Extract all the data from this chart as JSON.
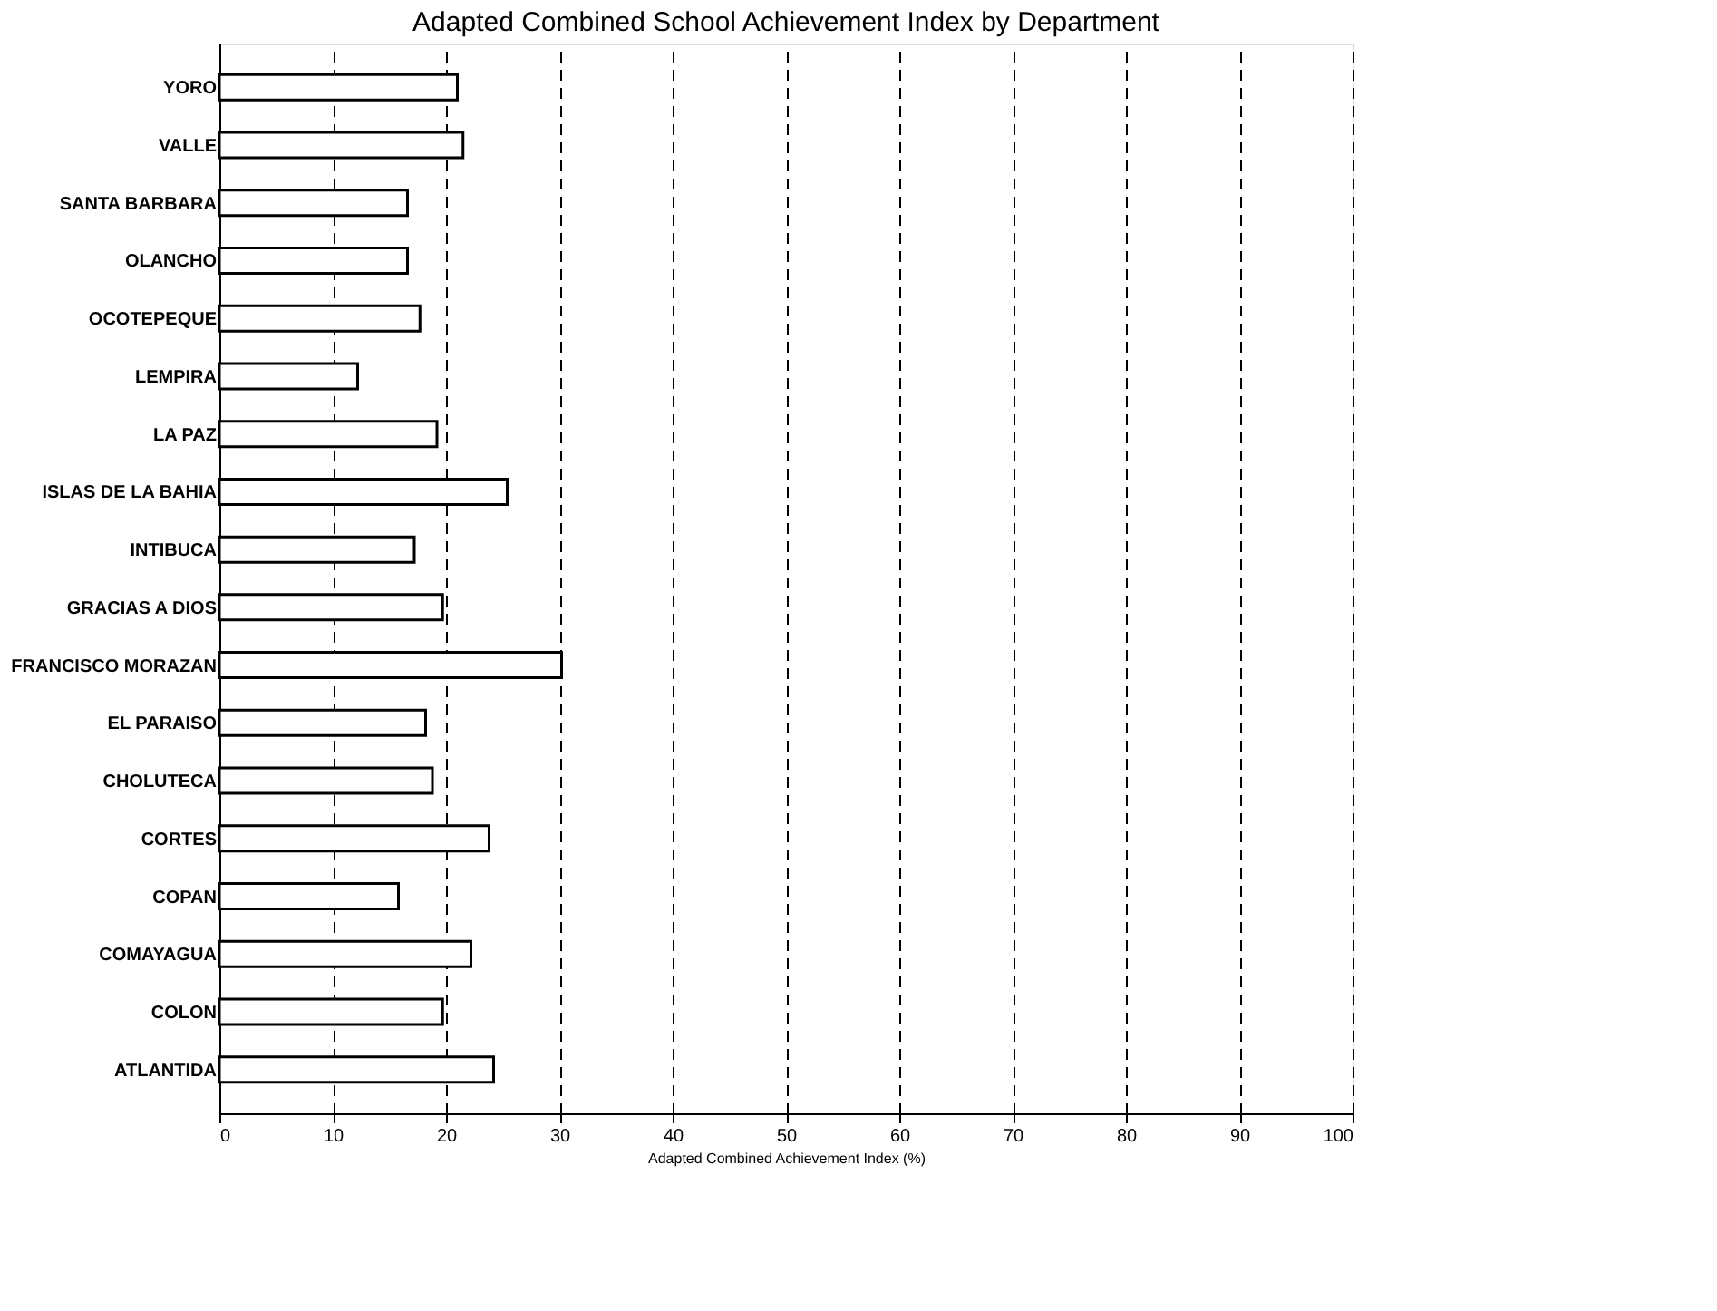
{
  "chart_data": {
    "type": "bar",
    "orientation": "horizontal",
    "title": "Adapted Combined School Achievement Index by Department",
    "xlabel": "Adapted Combined Achievement Index (%)",
    "categories": [
      "YORO",
      "VALLE",
      "SANTA BARBARA",
      "OLANCHO",
      "OCOTEPEQUE",
      "LEMPIRA",
      "LA PAZ",
      "ISLAS DE LA BAHIA",
      "INTIBUCA",
      "GRACIAS A DIOS",
      "FRANCISCO MORAZAN",
      "EL PARAISO",
      "CHOLUTECA",
      "CORTES",
      "COPAN",
      "COMAYAGUA",
      "COLON",
      "ATLANTIDA"
    ],
    "values": [
      21,
      21.5,
      16.6,
      16.6,
      17.7,
      12.2,
      19.2,
      25.4,
      17.2,
      19.7,
      30.2,
      18.2,
      18.8,
      23.8,
      15.8,
      22.2,
      19.7,
      24.2
    ],
    "color": "#ffffff",
    "xlim": [
      0,
      100
    ],
    "xticks": [
      0,
      10,
      20,
      30,
      40,
      50,
      60,
      70,
      80,
      90,
      100
    ],
    "grid": "x"
  }
}
